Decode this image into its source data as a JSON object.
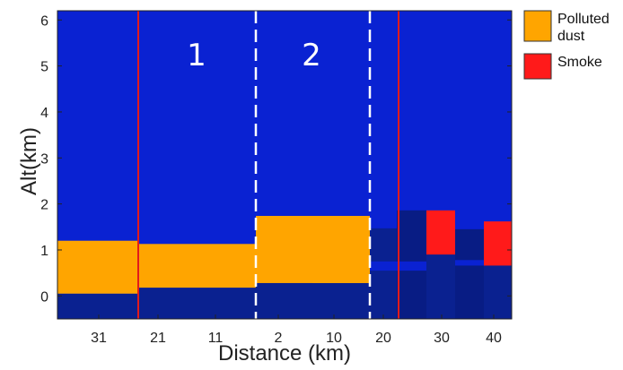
{
  "chart_data": {
    "type": "heatmap",
    "xlabel": "Distance (km)",
    "ylabel": "Alt(km)",
    "ylim": [
      -0.5,
      6.2
    ],
    "y_ticks": [
      0,
      1,
      2,
      3,
      4,
      5,
      6
    ],
    "x_tick_labels": [
      "31",
      "21",
      "11",
      "2",
      "10",
      "20",
      "30",
      "40"
    ],
    "legend": [
      {
        "label_lines": [
          "Polluted",
          "dust"
        ],
        "color": "#FFA500"
      },
      {
        "label_lines": [
          "Smoke"
        ],
        "color": "#FF1A1A"
      }
    ],
    "segment_labels": [
      "1",
      "2"
    ],
    "colors": {
      "background": "#0A22D2",
      "dark_layer": "#0A2190",
      "dark_layer_2": "#081C84",
      "polluted_dust": "#FFA500",
      "smoke": "#FF1A1A",
      "red_divider": "#E21B1B",
      "dash_divider": "#FFFFFF"
    },
    "layers": [
      {
        "class": "polluted_dust",
        "segment": 0,
        "alt_bottom": 0.05,
        "alt_top": 1.2
      },
      {
        "class": "polluted_dust",
        "segment": 1,
        "alt_bottom": 0.18,
        "alt_top": 1.13
      },
      {
        "class": "polluted_dust",
        "segment": 2,
        "alt_bottom": 0.28,
        "alt_top": 1.74
      },
      {
        "class": "smoke",
        "segment": 3,
        "alt_bottom": 0.9,
        "alt_top": 1.86
      },
      {
        "class": "smoke",
        "segment": 3,
        "alt_bottom": 0.66,
        "alt_top": 1.62
      }
    ]
  }
}
